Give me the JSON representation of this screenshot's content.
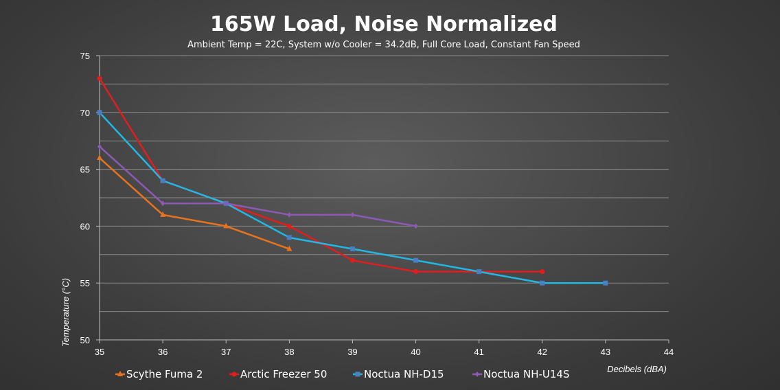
{
  "chart_data": {
    "type": "line",
    "title": "165W Load, Noise Normalized",
    "subtitle": "Ambient Temp = 22C, System w/o Cooler = 34.2dB, Full Core Load, Constant Fan Speed",
    "xlabel": "Decibels (dBA)",
    "ylabel": "Temperature (°C)",
    "xlim": [
      35,
      44
    ],
    "ylim": [
      50,
      75
    ],
    "x_ticks": [
      35,
      36,
      37,
      38,
      39,
      40,
      41,
      42,
      43,
      44
    ],
    "y_ticks": [
      50,
      55,
      60,
      65,
      70,
      75
    ],
    "grid": true,
    "legend_position": "bottom",
    "series": [
      {
        "name": "Scythe Fuma 2",
        "color": "#e8731e",
        "marker": "triangle",
        "x": [
          35,
          36,
          37,
          38
        ],
        "y": [
          66,
          61,
          60,
          58
        ]
      },
      {
        "name": "Arctic Freezer 50",
        "color": "#e01e1e",
        "marker": "circle",
        "x": [
          35,
          36,
          37,
          38,
          39,
          40,
          41,
          42
        ],
        "y": [
          73,
          64,
          62,
          60,
          57,
          56,
          56,
          56
        ]
      },
      {
        "name": "Noctua NH-D15",
        "color": "#22b8e6",
        "marker": "square",
        "x": [
          35,
          36,
          37,
          38,
          39,
          40,
          41,
          42,
          43
        ],
        "y": [
          70,
          64,
          62,
          59,
          58,
          57,
          56,
          55,
          55
        ]
      },
      {
        "name": "Noctua NH-U14S",
        "color": "#8c5ab4",
        "marker": "diamond",
        "x": [
          35,
          36,
          37,
          38,
          39,
          40
        ],
        "y": [
          67,
          62,
          62,
          61,
          61,
          60
        ]
      }
    ]
  }
}
